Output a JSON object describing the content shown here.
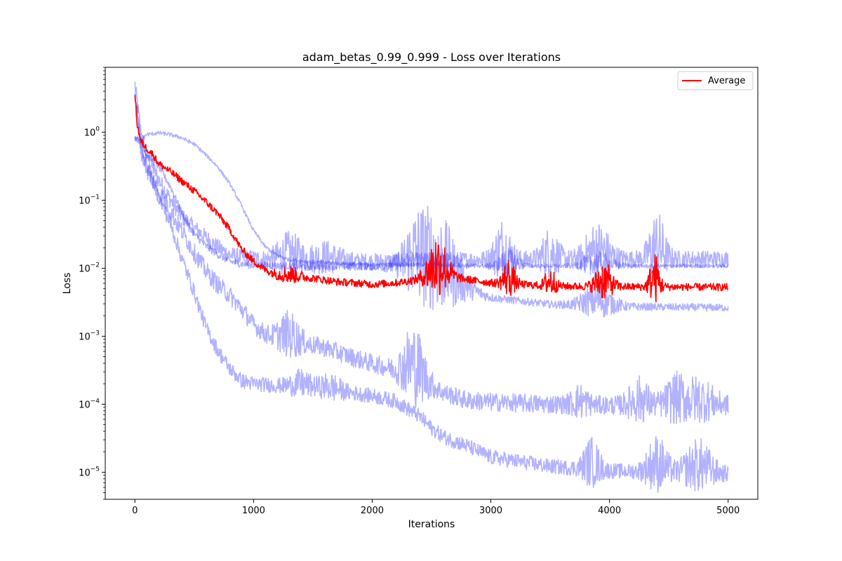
{
  "chart_data": {
    "type": "line",
    "title": "adam_betas_0.99_0.999 - Loss over Iterations",
    "xlabel": "Iterations",
    "ylabel": "Loss",
    "xscale": "linear",
    "yscale": "log",
    "xlim": [
      -250,
      5250
    ],
    "ylim": [
      4e-06,
      9
    ],
    "grid": false,
    "legend_position": "top-right",
    "x_ticks": [
      0,
      1000,
      2000,
      3000,
      4000,
      5000
    ],
    "x_tick_labels": [
      "0",
      "1000",
      "2000",
      "3000",
      "4000",
      "5000"
    ],
    "y_ticks": [
      1,
      0.1,
      0.01,
      0.001,
      0.0001,
      1e-05
    ],
    "y_tick_labels": [
      {
        "base": "10",
        "exp": "0"
      },
      {
        "base": "10",
        "exp": "−1"
      },
      {
        "base": "10",
        "exp": "−2"
      },
      {
        "base": "10",
        "exp": "−3"
      },
      {
        "base": "10",
        "exp": "−4"
      },
      {
        "base": "10",
        "exp": "−5"
      }
    ],
    "colors": {
      "runs": "#0000ff",
      "average": "#ff0000"
    },
    "series": [
      {
        "legend": false,
        "color": "#0000ff",
        "x": [
          0,
          50,
          100,
          200,
          300,
          400,
          500,
          600,
          700,
          800,
          900,
          1000,
          1100,
          1200,
          1500,
          2000,
          2500,
          3000,
          4000,
          5000
        ],
        "values": [
          4.5,
          0.9,
          0.4,
          0.18,
          0.09,
          0.05,
          0.035,
          0.025,
          0.018,
          0.014,
          0.013,
          0.0125,
          0.012,
          0.0118,
          0.0115,
          0.0112,
          0.0115,
          0.012,
          0.0122,
          0.0122
        ],
        "noise": 0.45,
        "bumps": [
          [
            1300,
            120,
            0.8
          ],
          [
            1600,
            150,
            0.5
          ],
          [
            3100,
            80,
            1.4
          ],
          [
            3500,
            80,
            1.0
          ],
          [
            3900,
            120,
            1.2
          ],
          [
            4400,
            80,
            1.6
          ]
        ]
      },
      {
        "legend": false,
        "color": "#0000ff",
        "x": [
          0,
          50,
          100,
          200,
          300,
          400,
          500,
          600,
          700,
          800,
          900,
          1000,
          1100,
          1200,
          1500,
          2000,
          2200,
          2400,
          2600,
          2800,
          3000,
          3500,
          4000,
          5000
        ],
        "values": [
          0.8,
          0.7,
          0.45,
          0.3,
          0.15,
          0.06,
          0.03,
          0.02,
          0.015,
          0.012,
          0.011,
          0.0105,
          0.0105,
          0.0103,
          0.0102,
          0.01,
          0.0095,
          0.008,
          0.006,
          0.0045,
          0.0035,
          0.0028,
          0.0026,
          0.0025
        ],
        "noise": 0.2,
        "bumps": [
          [
            2550,
            220,
            2.5
          ],
          [
            2350,
            120,
            1.2
          ],
          [
            3900,
            150,
            0.8
          ]
        ]
      },
      {
        "legend": false,
        "color": "#0000ff",
        "x": [
          0,
          50,
          100,
          200,
          300,
          400,
          500,
          600,
          700,
          800,
          900,
          1000,
          1100,
          1200,
          1300,
          1500,
          2000,
          2500,
          3000,
          4000,
          5000
        ],
        "values": [
          0.8,
          0.75,
          0.9,
          0.95,
          0.9,
          0.8,
          0.65,
          0.45,
          0.3,
          0.17,
          0.08,
          0.035,
          0.02,
          0.015,
          0.013,
          0.012,
          0.011,
          0.011,
          0.0105,
          0.0105,
          0.0105
        ],
        "noise": 0.1,
        "bumps": [
          [
            3150,
            100,
            0.6
          ],
          [
            3900,
            150,
            0.5
          ]
        ]
      },
      {
        "legend": false,
        "color": "#0000ff",
        "x": [
          0,
          50,
          100,
          200,
          300,
          400,
          500,
          600,
          700,
          800,
          900,
          1000,
          1100,
          1200,
          1400,
          1600,
          1800,
          2000,
          2200,
          2400,
          2600,
          2800,
          3000,
          3500,
          4000,
          5000
        ],
        "values": [
          3.5,
          0.5,
          0.25,
          0.12,
          0.06,
          0.03,
          0.015,
          0.008,
          0.005,
          0.0035,
          0.0022,
          0.0013,
          0.00095,
          0.00085,
          0.0007,
          0.0006,
          0.00045,
          0.00035,
          0.00028,
          0.0002,
          0.00013,
          0.0001,
          9.5e-05,
          8.8e-05,
          8.5e-05,
          8.5e-05
        ],
        "noise": 0.5,
        "bumps": [
          [
            1300,
            100,
            0.8
          ],
          [
            2350,
            110,
            1.8
          ],
          [
            3750,
            80,
            0.5
          ],
          [
            4250,
            100,
            0.8
          ],
          [
            4550,
            100,
            0.8
          ],
          [
            4750,
            150,
            0.8
          ]
        ]
      },
      {
        "legend": false,
        "color": "#0000ff",
        "x": [
          0,
          50,
          100,
          200,
          300,
          400,
          500,
          600,
          700,
          800,
          900,
          1000,
          1200,
          1500,
          2000,
          2200,
          2400,
          2500,
          2600,
          2800,
          3000,
          3500,
          4000,
          5000
        ],
        "values": [
          3.5,
          0.6,
          0.3,
          0.1,
          0.04,
          0.012,
          0.004,
          0.0012,
          0.00055,
          0.0003,
          0.0002,
          0.00018,
          0.00017,
          0.00016,
          0.00012,
          0.0001,
          6e-05,
          4e-05,
          3e-05,
          2.2e-05,
          1.5e-05,
          1.1e-05,
          9.5e-06,
          8.5e-06
        ],
        "noise": 0.4,
        "bumps": [
          [
            1400,
            100,
            0.4
          ],
          [
            1650,
            100,
            0.4
          ],
          [
            3850,
            80,
            1.0
          ],
          [
            4400,
            100,
            1.2
          ],
          [
            4750,
            130,
            1.1
          ]
        ]
      },
      {
        "name": "Average",
        "legend": true,
        "color": "#ff0000",
        "x": [
          0,
          20,
          50,
          100,
          150,
          200,
          300,
          400,
          500,
          600,
          700,
          800,
          900,
          1000,
          1100,
          1200,
          1300,
          1500,
          1700,
          1900,
          2000,
          2200,
          2400,
          2600,
          2800,
          3000,
          3500,
          4000,
          5000
        ],
        "values": [
          3.5,
          1.2,
          0.7,
          0.55,
          0.45,
          0.33,
          0.25,
          0.18,
          0.13,
          0.09,
          0.06,
          0.035,
          0.018,
          0.012,
          0.009,
          0.0075,
          0.0072,
          0.0068,
          0.006,
          0.0057,
          0.0055,
          0.0058,
          0.0065,
          0.0075,
          0.0065,
          0.0058,
          0.0052,
          0.0051,
          0.005
        ],
        "noise": 0.2,
        "bumps": [
          [
            1300,
            100,
            0.3
          ],
          [
            2550,
            100,
            1.6
          ],
          [
            3150,
            60,
            0.9
          ],
          [
            3500,
            50,
            0.7
          ],
          [
            3950,
            80,
            0.9
          ],
          [
            4380,
            50,
            1.2
          ]
        ]
      }
    ]
  }
}
